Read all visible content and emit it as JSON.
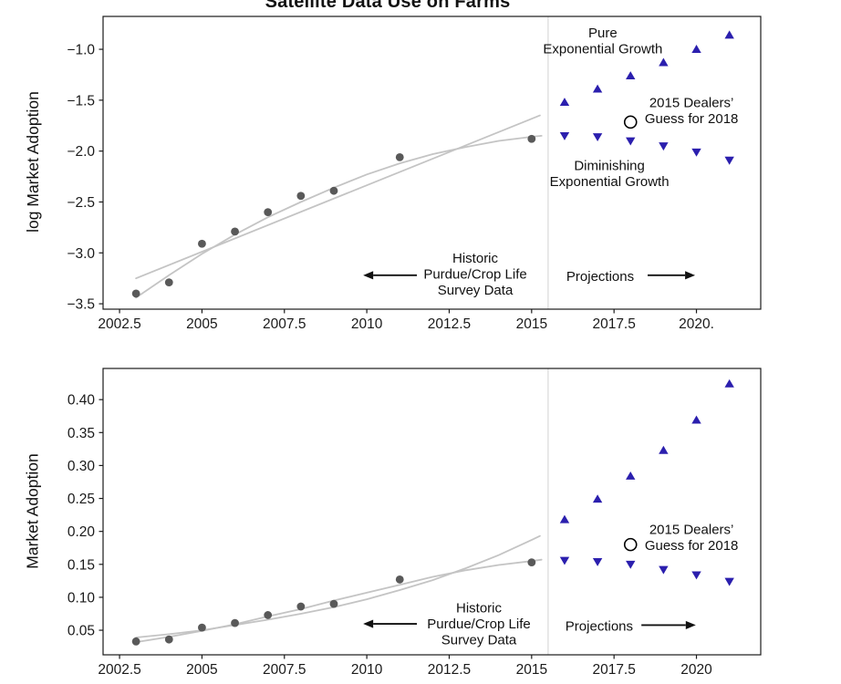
{
  "title": "Satellite Data Use on Farms",
  "colors": {
    "projection_blue": "#2b1fae",
    "historic_gray": "#595959",
    "fit_curve_gray": "#c4c4c4",
    "divider_gray": "#dcdcdc",
    "axis_black": "#1a1a1a",
    "guess_circle_black": "#000000"
  },
  "chart_data": [
    {
      "type": "scatter",
      "ylabel": "log Market Adoption",
      "xlabel": "",
      "x_range": [
        2002.0,
        2021.95
      ],
      "y_range": [
        -3.553,
        -0.677
      ],
      "grid": false,
      "separator_year": 2015.5,
      "x_ticks": [
        {
          "label": "2002.5",
          "value": 2002.5
        },
        {
          "label": "2005",
          "value": 2005
        },
        {
          "label": "2007.5",
          "value": 2007.5
        },
        {
          "label": "2010",
          "value": 2010
        },
        {
          "label": "2012.5",
          "value": 2012.5
        },
        {
          "label": "2015",
          "value": 2015
        },
        {
          "label": "2017.5",
          "value": 2017.5
        },
        {
          "label": "2020.",
          "value": 2020
        }
      ],
      "y_ticks": [
        {
          "label": "−1.0",
          "value": -1.0
        },
        {
          "label": "−1.5",
          "value": -1.5
        },
        {
          "label": "−2.0",
          "value": -2.0
        },
        {
          "label": "−2.5",
          "value": -2.5
        },
        {
          "label": "−3.0",
          "value": -3.0
        },
        {
          "label": "−3.5",
          "value": -3.5
        }
      ],
      "series": [
        {
          "name": "historic-survey-data",
          "marker": "dot",
          "color": "#595959",
          "points": [
            [
              2003,
              -3.4
            ],
            [
              2004,
              -3.29
            ],
            [
              2005,
              -2.91
            ],
            [
              2006,
              -2.79
            ],
            [
              2007,
              -2.6
            ],
            [
              2008,
              -2.44
            ],
            [
              2009,
              -2.39
            ],
            [
              2011,
              -2.06
            ],
            [
              2015,
              -1.88
            ]
          ]
        },
        {
          "name": "pure-exponential-growth",
          "marker": "triangle-up",
          "color": "#2b1fae",
          "points": [
            [
              2016,
              -1.52
            ],
            [
              2017,
              -1.39
            ],
            [
              2018,
              -1.26
            ],
            [
              2019,
              -1.13
            ],
            [
              2020,
              -1.0
            ],
            [
              2021,
              -0.86
            ]
          ]
        },
        {
          "name": "diminishing-exponential-growth",
          "marker": "triangle-down",
          "color": "#2b1fae",
          "points": [
            [
              2016,
              -1.85
            ],
            [
              2017,
              -1.86
            ],
            [
              2018,
              -1.9
            ],
            [
              2019,
              -1.95
            ],
            [
              2020,
              -2.01
            ],
            [
              2021,
              -2.09
            ]
          ]
        },
        {
          "name": "dealers-guess-2018",
          "marker": "open-circle",
          "color": "#000000",
          "points": [
            [
              2018,
              -1.715
            ]
          ]
        }
      ],
      "curves": [
        {
          "name": "pure-exponential-fit",
          "color": "#c4c4c4",
          "points": [
            [
              2003,
              -3.25
            ],
            [
              2015.25,
              -1.65
            ]
          ]
        },
        {
          "name": "diminishing-exponential-fit",
          "color": "#c4c4c4",
          "points": [
            [
              2003,
              -3.44
            ],
            [
              2004,
              -3.22
            ],
            [
              2005,
              -3.01
            ],
            [
              2006,
              -2.82
            ],
            [
              2007,
              -2.65
            ],
            [
              2008,
              -2.5
            ],
            [
              2009,
              -2.36
            ],
            [
              2010,
              -2.23
            ],
            [
              2011,
              -2.12
            ],
            [
              2012,
              -2.03
            ],
            [
              2013,
              -1.96
            ],
            [
              2014,
              -1.9
            ],
            [
              2015,
              -1.86
            ],
            [
              2015.3,
              -1.85
            ]
          ]
        }
      ],
      "annotations": [
        {
          "name": "pure-growth-label",
          "lines": [
            "Pure",
            "Exponential Growth"
          ],
          "year": 2017.16,
          "value": -0.915
        },
        {
          "name": "dealers-guess-label",
          "lines": [
            "2015 Dealers’",
            "Guess for 2018"
          ],
          "year": 2019.85,
          "value": -1.6
        },
        {
          "name": "diminishing-growth-label",
          "lines": [
            "Diminishing",
            "Exponential Growth"
          ],
          "year": 2017.36,
          "value": -2.22
        },
        {
          "name": "historic-label",
          "lines": [
            "Historic",
            "Purdue/Crop Life",
            "Survey Data"
          ],
          "year": 2013.29,
          "value": -3.21
        },
        {
          "name": "projections-label",
          "lines": [
            "Projections"
          ],
          "year": 2017.08,
          "value": -3.23
        }
      ],
      "arrows": [
        {
          "name": "historic-arrow",
          "dir": "left",
          "from_year": 2011.52,
          "to_year": 2009.89,
          "value": -3.22
        },
        {
          "name": "projections-arrow",
          "dir": "right",
          "from_year": 2018.52,
          "to_year": 2019.96,
          "value": -3.22
        }
      ]
    },
    {
      "type": "scatter",
      "ylabel": "Market Adoption",
      "xlabel": "",
      "x_range": [
        2002.0,
        2021.95
      ],
      "y_range": [
        0.0127,
        0.4473
      ],
      "grid": false,
      "separator_year": 2015.5,
      "x_ticks": [
        {
          "label": "2002.5",
          "value": 2002.5
        },
        {
          "label": "2005",
          "value": 2005
        },
        {
          "label": "2007.5",
          "value": 2007.5
        },
        {
          "label": "2010",
          "value": 2010
        },
        {
          "label": "2012.5",
          "value": 2012.5
        },
        {
          "label": "2015",
          "value": 2015
        },
        {
          "label": "2017.5",
          "value": 2017.5
        },
        {
          "label": "2020",
          "value": 2020
        }
      ],
      "y_ticks": [
        {
          "label": "0.40",
          "value": 0.4
        },
        {
          "label": "0.35",
          "value": 0.35
        },
        {
          "label": "0.30",
          "value": 0.3
        },
        {
          "label": "0.25",
          "value": 0.25
        },
        {
          "label": "0.20",
          "value": 0.2
        },
        {
          "label": "0.15",
          "value": 0.15
        },
        {
          "label": "0.10",
          "value": 0.1
        },
        {
          "label": "0.05",
          "value": 0.05
        }
      ],
      "series": [
        {
          "name": "historic-survey-data",
          "marker": "dot",
          "color": "#595959",
          "points": [
            [
              2003,
              0.033
            ],
            [
              2004,
              0.036
            ],
            [
              2005,
              0.054
            ],
            [
              2006,
              0.061
            ],
            [
              2007,
              0.073
            ],
            [
              2008,
              0.086
            ],
            [
              2009,
              0.09
            ],
            [
              2011,
              0.127
            ],
            [
              2015,
              0.153
            ]
          ]
        },
        {
          "name": "pure-exponential-growth",
          "marker": "triangle-up",
          "color": "#2b1fae",
          "points": [
            [
              2016,
              0.218
            ],
            [
              2017,
              0.249
            ],
            [
              2018,
              0.284
            ],
            [
              2019,
              0.323
            ],
            [
              2020,
              0.369
            ],
            [
              2021,
              0.424
            ]
          ]
        },
        {
          "name": "diminishing-exponential-growth",
          "marker": "triangle-down",
          "color": "#2b1fae",
          "points": [
            [
              2016,
              0.156
            ],
            [
              2017,
              0.154
            ],
            [
              2018,
              0.15
            ],
            [
              2019,
              0.142
            ],
            [
              2020,
              0.134
            ],
            [
              2021,
              0.124
            ]
          ]
        },
        {
          "name": "dealers-guess-2018",
          "marker": "open-circle",
          "color": "#000000",
          "points": [
            [
              2018,
              0.18
            ]
          ]
        }
      ],
      "curves": [
        {
          "name": "pure-exponential-fit",
          "color": "#c4c4c4",
          "points": [
            [
              2003,
              0.039
            ],
            [
              2004,
              0.044
            ],
            [
              2005,
              0.05
            ],
            [
              2006,
              0.058
            ],
            [
              2007,
              0.066
            ],
            [
              2008,
              0.075
            ],
            [
              2009,
              0.085
            ],
            [
              2010,
              0.097
            ],
            [
              2011,
              0.111
            ],
            [
              2012,
              0.126
            ],
            [
              2013,
              0.144
            ],
            [
              2014,
              0.164
            ],
            [
              2015,
              0.187
            ],
            [
              2015.25,
              0.193
            ]
          ]
        },
        {
          "name": "diminishing-exponential-fit",
          "color": "#c4c4c4",
          "points": [
            [
              2003,
              0.032
            ],
            [
              2004,
              0.04
            ],
            [
              2005,
              0.049
            ],
            [
              2006,
              0.059
            ],
            [
              2007,
              0.071
            ],
            [
              2008,
              0.082
            ],
            [
              2009,
              0.095
            ],
            [
              2010,
              0.107
            ],
            [
              2011,
              0.119
            ],
            [
              2012,
              0.131
            ],
            [
              2013,
              0.141
            ],
            [
              2014,
              0.149
            ],
            [
              2015,
              0.155
            ],
            [
              2015.3,
              0.157
            ]
          ]
        }
      ],
      "annotations": [
        {
          "name": "dealers-guess-label",
          "lines": [
            "2015 Dealers’",
            "Guess for 2018"
          ],
          "year": 2019.85,
          "value": 0.191
        },
        {
          "name": "historic-label",
          "lines": [
            "Historic",
            "Purdue/Crop Life",
            "Survey Data"
          ],
          "year": 2013.4,
          "value": 0.06
        },
        {
          "name": "projections-label",
          "lines": [
            "Projections"
          ],
          "year": 2017.05,
          "value": 0.0565
        }
      ],
      "arrows": [
        {
          "name": "historic-arrow",
          "dir": "left",
          "from_year": 2011.52,
          "to_year": 2009.89,
          "value": 0.0597
        },
        {
          "name": "projections-arrow",
          "dir": "right",
          "from_year": 2018.33,
          "to_year": 2019.98,
          "value": 0.0578
        }
      ]
    }
  ]
}
